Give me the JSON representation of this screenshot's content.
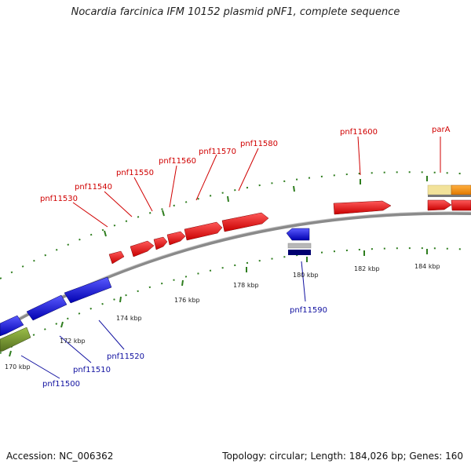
{
  "title": "Nocardia farcinica IFM 10152 plasmid pNF1, complete sequence",
  "footer": {
    "accession": "Accession: NC_006362",
    "summary": "Topology: circular; Length: 184,026 bp; Genes: 160"
  },
  "colors": {
    "forward_gene": "#ee0000",
    "reverse_gene": "#1a1aee",
    "green_gene": "#6b8e23",
    "backbone": "#888888",
    "gc_ticks": "#2e7d1e",
    "red_label": "#d00000",
    "blue_label": "#1010a0"
  },
  "scale_labels": [
    "170 kbp",
    "172 kbp",
    "174 kbp",
    "176 kbp",
    "178 kbp",
    "180 kbp",
    "182 kbp",
    "184 kbp"
  ],
  "forward_gene_labels": [
    "pnf11530",
    "pnf11540",
    "pnf11550",
    "pnf11560",
    "pnf11570",
    "pnf11580",
    "pnf11600",
    "parA"
  ],
  "reverse_gene_labels": [
    "pnf11500",
    "pnf11510",
    "pnf11520",
    "pnf11590"
  ]
}
